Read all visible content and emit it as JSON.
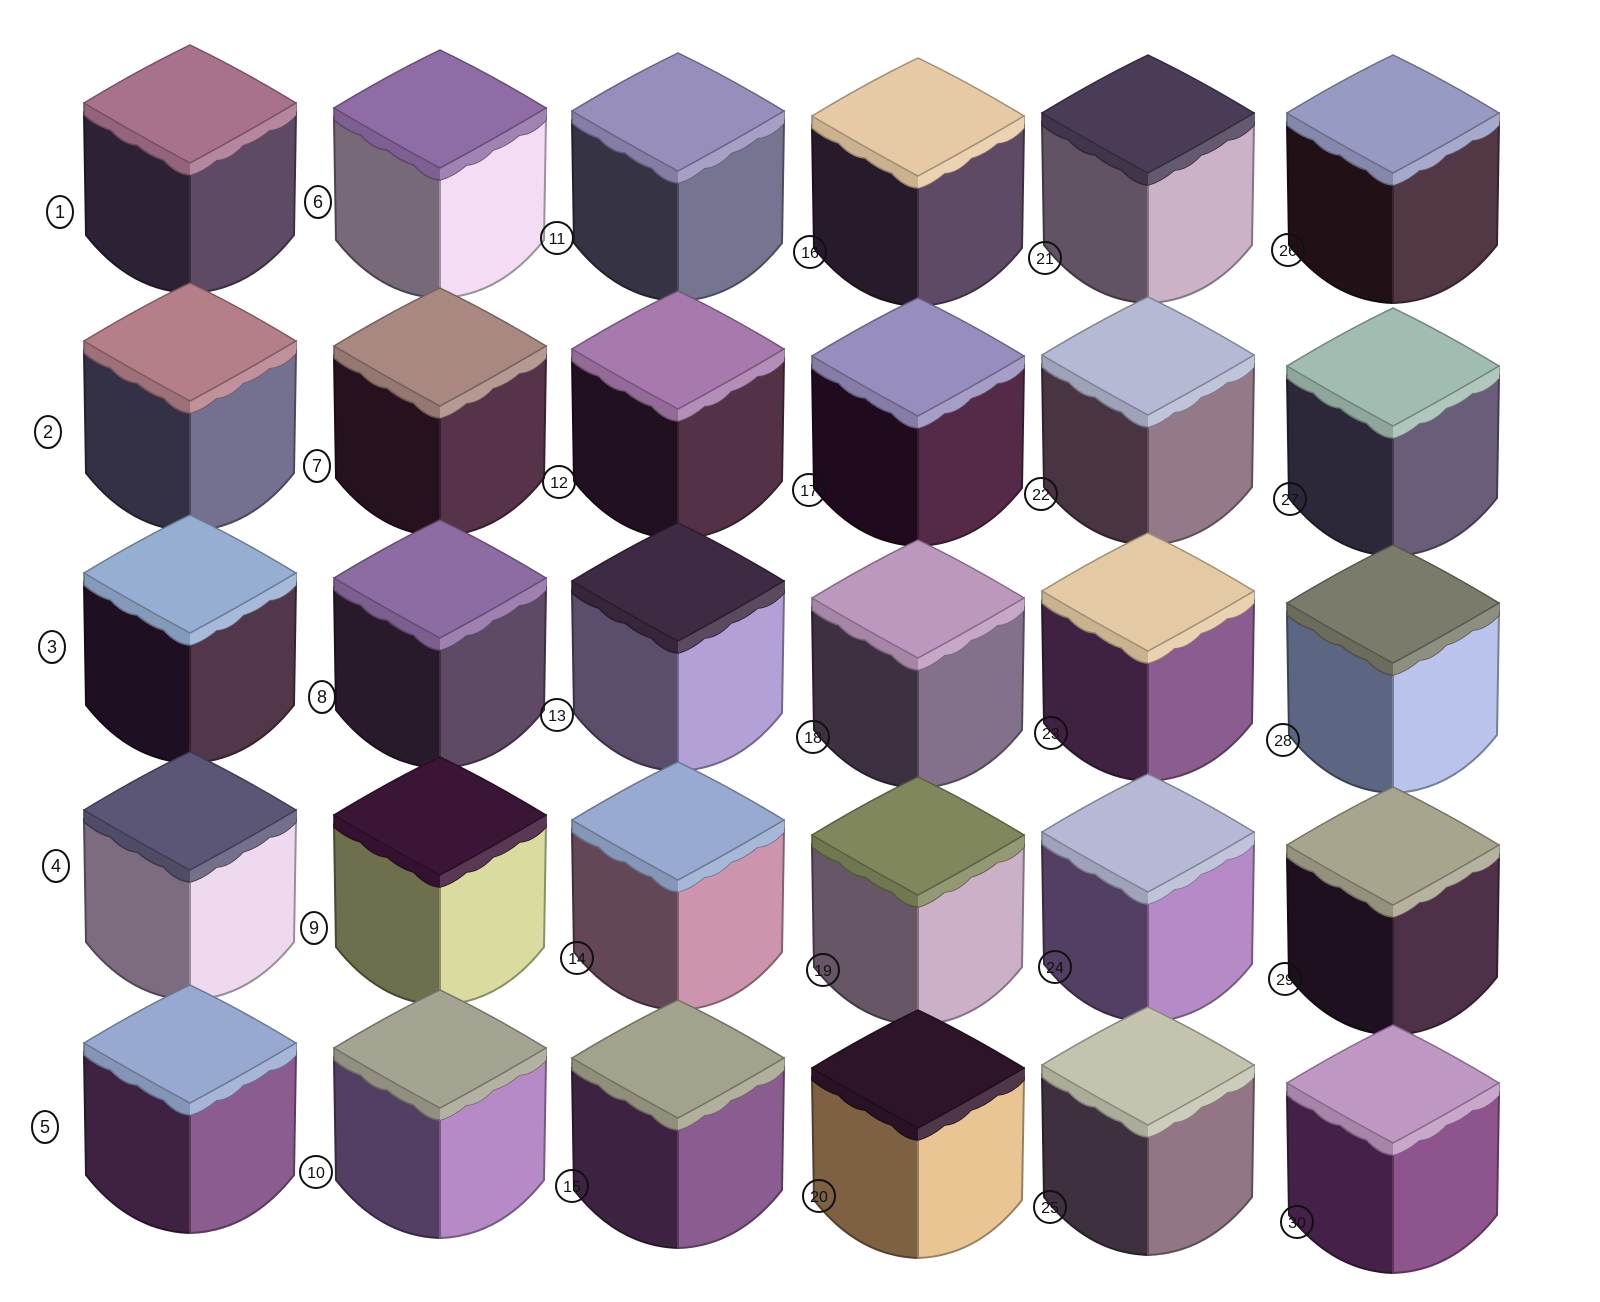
{
  "cubes": [
    {
      "label": "1",
      "top": "#a8728d",
      "left": "#2d2235",
      "right": "#5e4a64"
    },
    {
      "label": "2",
      "top": "#b47f89",
      "left": "#343147",
      "right": "#747090"
    },
    {
      "label": "3",
      "top": "#97aed3",
      "left": "#1e1022",
      "right": "#523649"
    },
    {
      "label": "4",
      "top": "#5b5676",
      "left": "#7d6c80",
      "right": "#efd9ee"
    },
    {
      "label": "5",
      "top": "#97a9d1",
      "left": "#3f2142",
      "right": "#8a5c8f"
    },
    {
      "label": "6",
      "top": "#8f6ca5",
      "left": "#786978",
      "right": "#f3dcf4"
    },
    {
      "label": "7",
      "top": "#a88880",
      "left": "#26121f",
      "right": "#563349"
    },
    {
      "label": "8",
      "top": "#8d6ba3",
      "left": "#291a2b",
      "right": "#5e4a64"
    },
    {
      "label": "9",
      "top": "#3b1535",
      "left": "#6e6f4c",
      "right": "#dadb9f"
    },
    {
      "label": "10",
      "top": "#a5a392",
      "left": "#543f64",
      "right": "#b58ac6"
    },
    {
      "label": "11",
      "top": "#978ebc",
      "left": "#353344",
      "right": "#767591"
    },
    {
      "label": "12",
      "top": "#a779ad",
      "left": "#211020",
      "right": "#533247"
    },
    {
      "label": "13",
      "top": "#3e2a43",
      "left": "#5b4d6c",
      "right": "#b3a0d6"
    },
    {
      "label": "14",
      "top": "#98aad1",
      "left": "#634756",
      "right": "#cd95ad"
    },
    {
      "label": "15",
      "top": "#a3a28c",
      "left": "#3d2242",
      "right": "#8a5c8f"
    },
    {
      "label": "16",
      "top": "#e6caa5",
      "left": "#271a2b",
      "right": "#5e4a64"
    },
    {
      "label": "17",
      "top": "#978dbe",
      "left": "#200b1e",
      "right": "#552a48"
    },
    {
      "label": "18",
      "top": "#bd98be",
      "left": "#3d3040",
      "right": "#83708b"
    },
    {
      "label": "19",
      "top": "#80875c",
      "left": "#665666",
      "right": "#ccb0c8"
    },
    {
      "label": "20",
      "top": "#2d1429",
      "left": "#7e6142",
      "right": "#e8c593"
    },
    {
      "label": "21",
      "top": "#4a3c56",
      "left": "#625364",
      "right": "#ccb2c7"
    },
    {
      "label": "22",
      "top": "#b5b9d3",
      "left": "#493442",
      "right": "#947989"
    },
    {
      "label": "23",
      "top": "#e4caa4",
      "left": "#3f2242",
      "right": "#8a5c8f"
    },
    {
      "label": "24",
      "top": "#b6b8d5",
      "left": "#543f64",
      "right": "#b58ac6"
    },
    {
      "label": "25",
      "top": "#c3c3b0",
      "left": "#3f3040",
      "right": "#937685"
    },
    {
      "label": "26",
      "top": "#979ac3",
      "left": "#211117",
      "right": "#523745"
    },
    {
      "label": "27",
      "top": "#a1bdb1",
      "left": "#2c2839",
      "right": "#6a5d79"
    },
    {
      "label": "28",
      "top": "#7b7b6b",
      "left": "#5c6683",
      "right": "#b9c3ec"
    },
    {
      "label": "29",
      "top": "#a8a58e",
      "left": "#1f1020",
      "right": "#4e3148"
    },
    {
      "label": "30",
      "top": "#be97c2",
      "left": "#45214a",
      "right": "#8e548e"
    }
  ]
}
